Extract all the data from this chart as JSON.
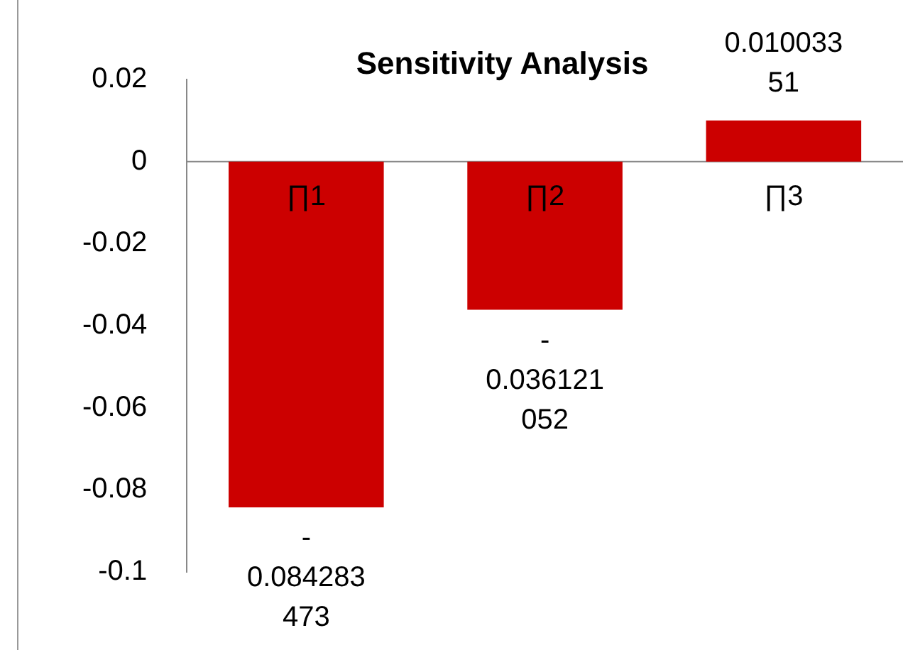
{
  "chart_data": {
    "type": "bar",
    "title": "Sensitivity Analysis",
    "categories": [
      "∏1",
      "∏2",
      "∏3"
    ],
    "values": [
      -0.084283473,
      -0.036121052,
      0.01003351
    ],
    "color": "#cc0000",
    "ylim": [
      -0.1,
      0.02
    ],
    "yticks": [
      -0.1,
      -0.08,
      -0.06,
      -0.04,
      -0.02,
      0,
      0.02
    ],
    "data_labels": true,
    "grid": false,
    "legend": false
  }
}
